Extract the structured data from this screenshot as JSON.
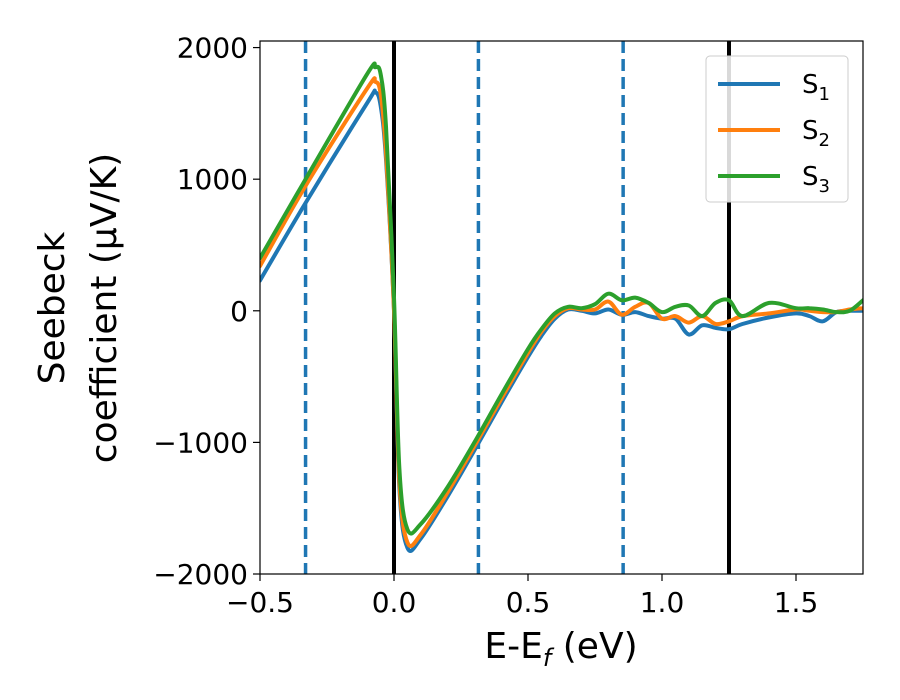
{
  "chart_data": {
    "type": "line",
    "xlabel": "E-E",
    "xlabel_sub": "f",
    "xlabel_unit": " (eV)",
    "ylabel_line1": "Seebeck",
    "ylabel_line2": "coefficient  (μV/K)",
    "xlim": [
      -0.5,
      1.75
    ],
    "ylim": [
      -2000,
      2050
    ],
    "xticks": [
      -0.5,
      0.0,
      0.5,
      1.0,
      1.5
    ],
    "xtick_labels": [
      "−0.5",
      "0.0",
      "0.5",
      "1.0",
      "1.5"
    ],
    "yticks": [
      -2000,
      -1000,
      0,
      1000,
      2000
    ],
    "ytick_labels": [
      "−2000",
      "−1000",
      "0",
      "1000",
      "2000"
    ],
    "grid": false,
    "legend_position": "top-right",
    "vertical_lines": [
      {
        "x": -0.33,
        "style": "dashed",
        "color": "#1f77b4"
      },
      {
        "x": 0.0,
        "style": "solid",
        "color": "#000000"
      },
      {
        "x": 0.315,
        "style": "dashed",
        "color": "#1f77b4"
      },
      {
        "x": 0.855,
        "style": "dashed",
        "color": "#1f77b4"
      },
      {
        "x": 1.25,
        "style": "solid",
        "color": "#000000"
      }
    ],
    "series": [
      {
        "name": "S",
        "sub": "1",
        "color": "#1f77b4",
        "x": [
          -0.5,
          -0.33,
          -0.1,
          -0.07,
          -0.05,
          -0.03,
          0.0,
          0.02,
          0.05,
          0.1,
          0.2,
          0.3,
          0.4,
          0.5,
          0.55,
          0.6,
          0.65,
          0.7,
          0.75,
          0.8,
          0.85,
          0.9,
          0.95,
          1.0,
          1.05,
          1.1,
          1.15,
          1.2,
          1.25,
          1.3,
          1.4,
          1.5,
          1.55,
          1.6,
          1.65,
          1.7,
          1.75
        ],
        "y": [
          230,
          820,
          1580,
          1660,
          1560,
          1150,
          0,
          -1350,
          -1800,
          -1730,
          -1410,
          -1060,
          -700,
          -350,
          -190,
          -60,
          10,
          0,
          -20,
          10,
          -30,
          -10,
          -40,
          -60,
          -60,
          -180,
          -110,
          -130,
          -140,
          -100,
          -50,
          -20,
          -40,
          -80,
          -10,
          0,
          0
        ]
      },
      {
        "name": "S",
        "sub": "2",
        "color": "#ff7f0e",
        "x": [
          -0.5,
          -0.33,
          -0.1,
          -0.07,
          -0.05,
          -0.03,
          0.0,
          0.02,
          0.05,
          0.1,
          0.2,
          0.3,
          0.4,
          0.5,
          0.55,
          0.6,
          0.65,
          0.7,
          0.75,
          0.8,
          0.85,
          0.9,
          0.95,
          1.0,
          1.05,
          1.1,
          1.15,
          1.2,
          1.25,
          1.3,
          1.4,
          1.5,
          1.55,
          1.6,
          1.65,
          1.7,
          1.75
        ],
        "y": [
          340,
          950,
          1690,
          1740,
          1650,
          1200,
          0,
          -1300,
          -1760,
          -1700,
          -1380,
          -1030,
          -670,
          -320,
          -160,
          -40,
          20,
          10,
          10,
          70,
          -30,
          30,
          60,
          -60,
          -40,
          -90,
          -40,
          -100,
          -80,
          -40,
          -20,
          10,
          0,
          -10,
          -10,
          10,
          20
        ]
      },
      {
        "name": "S",
        "sub": "3",
        "color": "#2ca02c",
        "x": [
          -0.5,
          -0.33,
          -0.1,
          -0.07,
          -0.05,
          -0.03,
          0.0,
          0.02,
          0.05,
          0.1,
          0.2,
          0.3,
          0.4,
          0.5,
          0.55,
          0.6,
          0.65,
          0.7,
          0.75,
          0.8,
          0.85,
          0.9,
          0.95,
          1.0,
          1.05,
          1.1,
          1.15,
          1.2,
          1.25,
          1.3,
          1.4,
          1.5,
          1.55,
          1.6,
          1.65,
          1.7,
          1.75
        ],
        "y": [
          400,
          1000,
          1800,
          1850,
          1800,
          1400,
          100,
          -1200,
          -1660,
          -1620,
          -1340,
          -1000,
          -640,
          -290,
          -140,
          -20,
          30,
          20,
          50,
          130,
          80,
          100,
          60,
          -10,
          30,
          40,
          -40,
          60,
          80,
          -40,
          60,
          20,
          20,
          10,
          -10,
          0,
          80
        ]
      }
    ]
  }
}
